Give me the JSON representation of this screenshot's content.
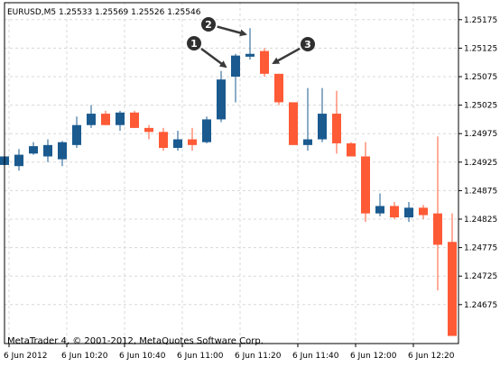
{
  "symbol_header": "EURUSD,M5  1.25533 1.25569 1.25526 1.25546",
  "copyright": "MetaTrader 4, © 2001-2012, MetaQuotes Software Corp.",
  "colors": {
    "bull": "#1a5a8f",
    "bear": "#ff5a36",
    "grid": "#d8d8d8",
    "axis": "#000000",
    "annotation": "#3a3a3a"
  },
  "chart_data": {
    "type": "candlestick",
    "ylim": [
      1.2467,
      1.252
    ],
    "y_ticks": [
      "1.25175",
      "1.25125",
      "1.25075",
      "1.25025",
      "1.24975",
      "1.24925",
      "1.24875",
      "1.24825",
      "1.24775",
      "1.24725",
      "1.24675"
    ],
    "x_tick_labels": [
      "6 Jun 2012",
      "6 Jun 10:20",
      "6 Jun 10:40",
      "6 Jun 11:00",
      "6 Jun 11:20",
      "6 Jun 11:40",
      "6 Jun 12:00",
      "6 Jun 12:20"
    ],
    "grid": true,
    "candles": [
      {
        "o": 1.2492,
        "h": 1.24945,
        "l": 1.24885,
        "c": 1.24935
      },
      {
        "o": 1.24918,
        "h": 1.24948,
        "l": 1.2491,
        "c": 1.24938
      },
      {
        "o": 1.2494,
        "h": 1.2496,
        "l": 1.24938,
        "c": 1.24953
      },
      {
        "o": 1.24935,
        "h": 1.24965,
        "l": 1.24925,
        "c": 1.24955
      },
      {
        "o": 1.2493,
        "h": 1.24962,
        "l": 1.24918,
        "c": 1.2496
      },
      {
        "o": 1.24955,
        "h": 1.25005,
        "l": 1.2495,
        "c": 1.2499
      },
      {
        "o": 1.2499,
        "h": 1.25025,
        "l": 1.24985,
        "c": 1.2501
      },
      {
        "o": 1.2501,
        "h": 1.25015,
        "l": 1.2499,
        "c": 1.2499
      },
      {
        "o": 1.2499,
        "h": 1.25015,
        "l": 1.2498,
        "c": 1.25012
      },
      {
        "o": 1.25012,
        "h": 1.25015,
        "l": 1.24985,
        "c": 1.24985
      },
      {
        "o": 1.24985,
        "h": 1.2499,
        "l": 1.24965,
        "c": 1.24978
      },
      {
        "o": 1.24978,
        "h": 1.24985,
        "l": 1.24945,
        "c": 1.2495
      },
      {
        "o": 1.2495,
        "h": 1.2498,
        "l": 1.24945,
        "c": 1.24965
      },
      {
        "o": 1.24965,
        "h": 1.24985,
        "l": 1.24945,
        "c": 1.24955
      },
      {
        "o": 1.2496,
        "h": 1.25005,
        "l": 1.24958,
        "c": 1.25
      },
      {
        "o": 1.25,
        "h": 1.25085,
        "l": 1.24995,
        "c": 1.2507
      },
      {
        "o": 1.25075,
        "h": 1.25115,
        "l": 1.2503,
        "c": 1.25112
      },
      {
        "o": 1.2511,
        "h": 1.2516,
        "l": 1.25105,
        "c": 1.25115
      },
      {
        "o": 1.2512,
        "h": 1.25125,
        "l": 1.25075,
        "c": 1.2508
      },
      {
        "o": 1.2508,
        "h": 1.2508,
        "l": 1.25025,
        "c": 1.2503
      },
      {
        "o": 1.2503,
        "h": 1.2503,
        "l": 1.24955,
        "c": 1.24955
      },
      {
        "o": 1.24955,
        "h": 1.25055,
        "l": 1.24945,
        "c": 1.24965
      },
      {
        "o": 1.24965,
        "h": 1.25055,
        "l": 1.2496,
        "c": 1.2501
      },
      {
        "o": 1.2501,
        "h": 1.2505,
        "l": 1.2494,
        "c": 1.24958
      },
      {
        "o": 1.24958,
        "h": 1.2496,
        "l": 1.24935,
        "c": 1.24935
      },
      {
        "o": 1.24935,
        "h": 1.2496,
        "l": 1.2482,
        "c": 1.24835
      },
      {
        "o": 1.24835,
        "h": 1.2487,
        "l": 1.2483,
        "c": 1.24848
      },
      {
        "o": 1.24848,
        "h": 1.24855,
        "l": 1.24825,
        "c": 1.24828
      },
      {
        "o": 1.24828,
        "h": 1.24855,
        "l": 1.2482,
        "c": 1.24845
      },
      {
        "o": 1.24845,
        "h": 1.2485,
        "l": 1.24825,
        "c": 1.24832
      },
      {
        "o": 1.24835,
        "h": 1.2497,
        "l": 1.247,
        "c": 1.2478
      },
      {
        "o": 1.24785,
        "h": 1.24835,
        "l": 1.2462,
        "c": 1.2462
      }
    ],
    "annotations": [
      "1",
      "2",
      "3"
    ]
  }
}
